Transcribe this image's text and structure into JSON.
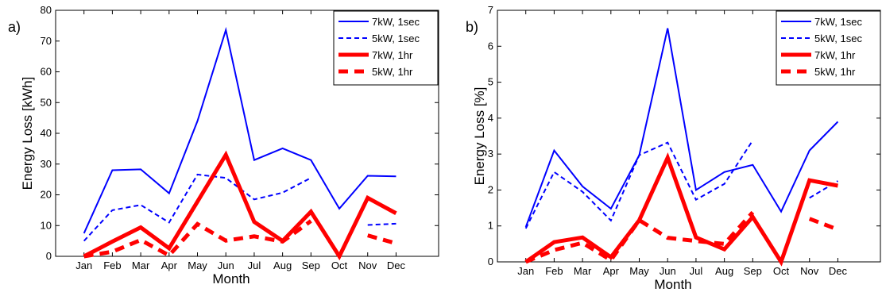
{
  "chart_data": [
    {
      "type": "line",
      "panel_label": "a)",
      "xlabel": "Month",
      "ylabel": "Energy Loss [kWh]",
      "ylim": [
        0,
        80
      ],
      "yticks": [
        0,
        10,
        20,
        30,
        40,
        50,
        60,
        70,
        80
      ],
      "categories": [
        "Jan",
        "Feb",
        "Mar",
        "Apr",
        "May",
        "Jun",
        "Jul",
        "Aug",
        "Sep",
        "Oct",
        "Nov",
        "Dec"
      ],
      "legend_position": "top-right",
      "grid": false,
      "series": [
        {
          "name": "7kW, 1sec",
          "color": "#0000FF",
          "style": "solid-thin",
          "values": [
            7.5,
            28,
            28.3,
            20.5,
            44,
            73.6,
            31.3,
            35.1,
            31.3,
            15.5,
            26.2,
            26
          ]
        },
        {
          "name": "5kW, 1sec",
          "color": "#0000FF",
          "style": "dashed-thin",
          "values": [
            5,
            15,
            16.7,
            11,
            26.6,
            25.5,
            18.5,
            20.7,
            25.5,
            null,
            10.2,
            10.6
          ]
        },
        {
          "name": "7kW, 1hr",
          "color": "#FF0000",
          "style": "solid-thick",
          "values": [
            0,
            4.8,
            9.4,
            2.6,
            17.8,
            33,
            11.2,
            5,
            14.5,
            0,
            19,
            14
          ]
        },
        {
          "name": "5kW, 1hr",
          "color": "#FF0000",
          "style": "dashed-thick",
          "values": [
            0,
            1.5,
            5.3,
            0.3,
            10.5,
            5.1,
            6.5,
            4.8,
            11.5,
            null,
            6.8,
            4.2
          ]
        }
      ]
    },
    {
      "type": "line",
      "panel_label": "b)",
      "xlabel": "Month",
      "ylabel": "Energy Loss [%]",
      "ylim": [
        0,
        7
      ],
      "yticks": [
        0,
        1,
        2,
        3,
        4,
        5,
        6,
        7
      ],
      "categories": [
        "Jan",
        "Feb",
        "Mar",
        "Apr",
        "May",
        "Jun",
        "Jul",
        "Aug",
        "Sep",
        "Oct",
        "Nov",
        "Dec"
      ],
      "legend_position": "top-right",
      "grid": false,
      "series": [
        {
          "name": "7kW, 1sec",
          "color": "#0000FF",
          "style": "solid-thin",
          "values": [
            0.97,
            3.1,
            2.1,
            1.48,
            2.97,
            6.5,
            2.0,
            2.5,
            2.7,
            1.4,
            3.1,
            3.9
          ]
        },
        {
          "name": "5kW, 1sec",
          "color": "#0000FF",
          "style": "dashed-thin",
          "values": [
            0.93,
            2.5,
            1.95,
            1.15,
            2.97,
            3.32,
            1.73,
            2.17,
            3.38,
            null,
            1.78,
            2.25
          ]
        },
        {
          "name": "7kW, 1hr",
          "color": "#FF0000",
          "style": "solid-thick",
          "values": [
            0,
            0.55,
            0.68,
            0.13,
            1.16,
            2.9,
            0.68,
            0.35,
            1.25,
            0,
            2.27,
            2.12
          ]
        },
        {
          "name": "5kW, 1hr",
          "color": "#FF0000",
          "style": "dashed-thick",
          "values": [
            0,
            0.33,
            0.53,
            0.05,
            1.16,
            0.67,
            0.58,
            0.5,
            1.38,
            null,
            1.2,
            0.9
          ]
        }
      ]
    }
  ]
}
